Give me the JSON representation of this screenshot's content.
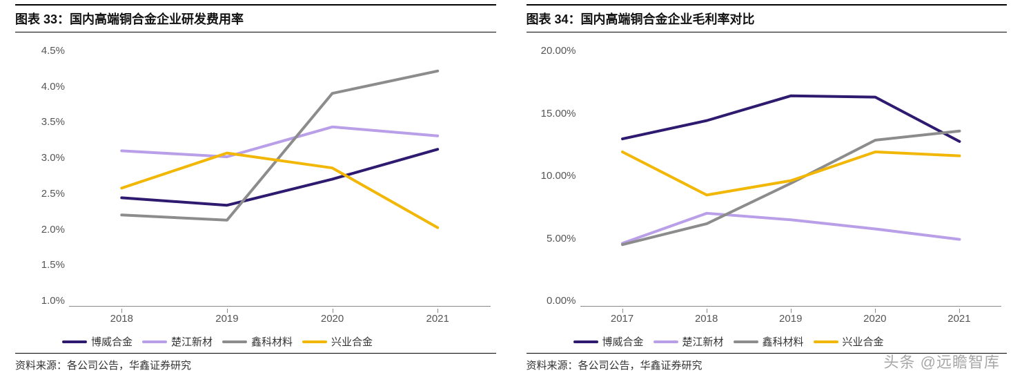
{
  "watermark": "头条 @远瞻智库",
  "chart_left": {
    "title": "图表 33：国内高端铜合金企业研发费用率",
    "source": "资料来源：各公司公告，华鑫证券研究",
    "type": "line",
    "x_categories": [
      "2018",
      "2019",
      "2020",
      "2021"
    ],
    "y_ticks": [
      "4.5%",
      "4.0%",
      "3.5%",
      "3.0%",
      "2.5%",
      "2.0%",
      "1.5%",
      "1.0%"
    ],
    "ylim": [
      1.0,
      4.5
    ],
    "background_color": "#ffffff",
    "axis_color": "#888888",
    "tick_fontsize": 15,
    "title_fontsize": 18,
    "line_width": 4,
    "series": [
      {
        "name": "博威合金",
        "color": "#2e1a6f",
        "values": [
          2.45,
          2.35,
          2.7,
          3.1
        ]
      },
      {
        "name": "楚江新材",
        "color": "#b99ee8",
        "values": [
          3.08,
          3.0,
          3.4,
          3.28
        ]
      },
      {
        "name": "鑫科材料",
        "color": "#8c8c8c",
        "values": [
          2.22,
          2.15,
          3.85,
          4.15
        ]
      },
      {
        "name": "兴业合金",
        "color": "#f2b705",
        "values": [
          2.58,
          3.05,
          2.85,
          2.05
        ]
      }
    ]
  },
  "chart_right": {
    "title": "图表 34：国内高端铜合金企业毛利率对比",
    "source": "资料来源：各公司公告，华鑫证券研究",
    "type": "line",
    "x_categories": [
      "2017",
      "2018",
      "2019",
      "2020",
      "2021"
    ],
    "y_ticks": [
      "20.00%",
      "15.00%",
      "10.00%",
      "5.00%",
      "0.00%"
    ],
    "ylim": [
      0.0,
      20.0
    ],
    "background_color": "#ffffff",
    "axis_color": "#888888",
    "tick_fontsize": 15,
    "title_fontsize": 18,
    "line_width": 4,
    "series": [
      {
        "name": "博威合金",
        "color": "#2e1a6f",
        "values": [
          12.8,
          14.2,
          16.1,
          16.0,
          12.6
        ]
      },
      {
        "name": "楚江新材",
        "color": "#b99ee8",
        "values": [
          4.8,
          7.1,
          6.6,
          5.9,
          5.1
        ]
      },
      {
        "name": "鑫科材料",
        "color": "#8c8c8c",
        "values": [
          4.7,
          6.3,
          9.4,
          12.7,
          13.4
        ]
      },
      {
        "name": "兴业合金",
        "color": "#f2b705",
        "values": [
          11.8,
          8.5,
          9.6,
          11.8,
          11.5
        ]
      }
    ]
  }
}
